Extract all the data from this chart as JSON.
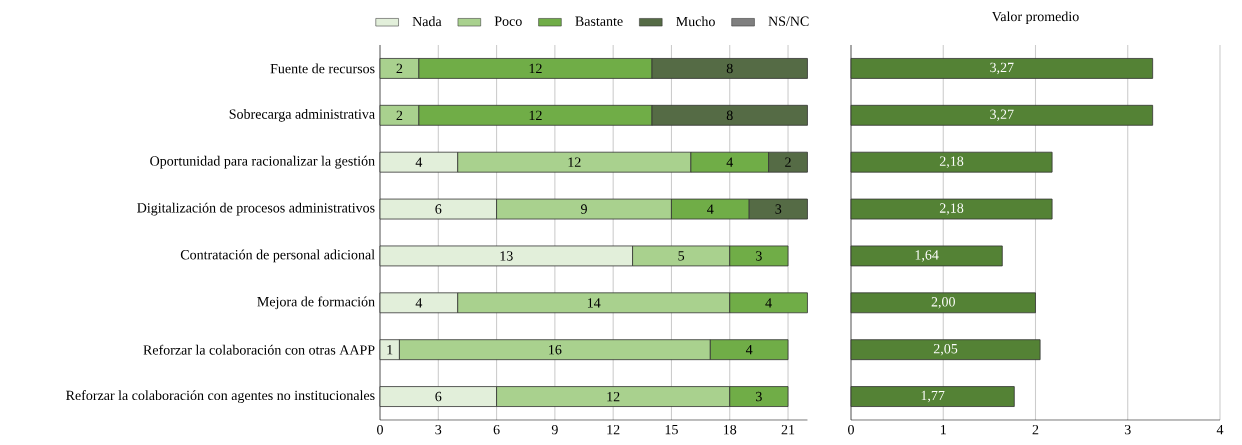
{
  "chart_data": [
    {
      "type": "bar",
      "orientation": "horizontal",
      "stacked": true,
      "legend": "top",
      "grid": "x",
      "data_labels": true,
      "categories": [
        "Fuente de recursos",
        "Sobrecarga administrativa",
        "Oportunidad para racionalizar la gestión",
        "Digitalización de procesos administrativos",
        "Contratación de personal adicional",
        "Mejora de formación",
        "Reforzar la colaboración con otras AAPP",
        "Reforzar la colaboración con agentes no institucionales"
      ],
      "series": [
        {
          "name": "Nada",
          "color": "#e2efda",
          "values": [
            null,
            null,
            4,
            6,
            13,
            4,
            1,
            6
          ]
        },
        {
          "name": "Poco",
          "color": "#a9d18e",
          "values": [
            2,
            2,
            12,
            9,
            5,
            14,
            16,
            12
          ]
        },
        {
          "name": "Bastante",
          "color": "#70ad47",
          "values": [
            12,
            12,
            4,
            4,
            3,
            4,
            4,
            3
          ]
        },
        {
          "name": "Mucho",
          "color": "#556b45",
          "values": [
            8,
            8,
            2,
            3,
            null,
            null,
            null,
            null
          ]
        },
        {
          "name": "NS/NC",
          "color": "#7f7f7f",
          "values": [
            null,
            null,
            null,
            null,
            null,
            null,
            null,
            null
          ]
        }
      ],
      "xlim": [
        0,
        22
      ],
      "xticks": [
        0,
        3,
        6,
        9,
        12,
        15,
        18,
        21
      ]
    },
    {
      "type": "bar",
      "orientation": "horizontal",
      "title": "Valor promedio",
      "grid": "x",
      "tick_labels": "x",
      "categories": [
        null,
        null,
        null,
        null,
        null,
        null,
        null,
        null
      ],
      "values": [
        3.27,
        3.27,
        2.18,
        2.18,
        1.64,
        2.0,
        2.05,
        1.77
      ],
      "color": "#548235",
      "value_labels": [
        "3,27",
        "3,27",
        "2,18",
        "2,18",
        "1,64",
        "2,00",
        "2,05",
        "1,77"
      ],
      "xlim": [
        0,
        4
      ],
      "xticks": [
        0,
        1,
        2,
        3,
        4
      ]
    }
  ]
}
